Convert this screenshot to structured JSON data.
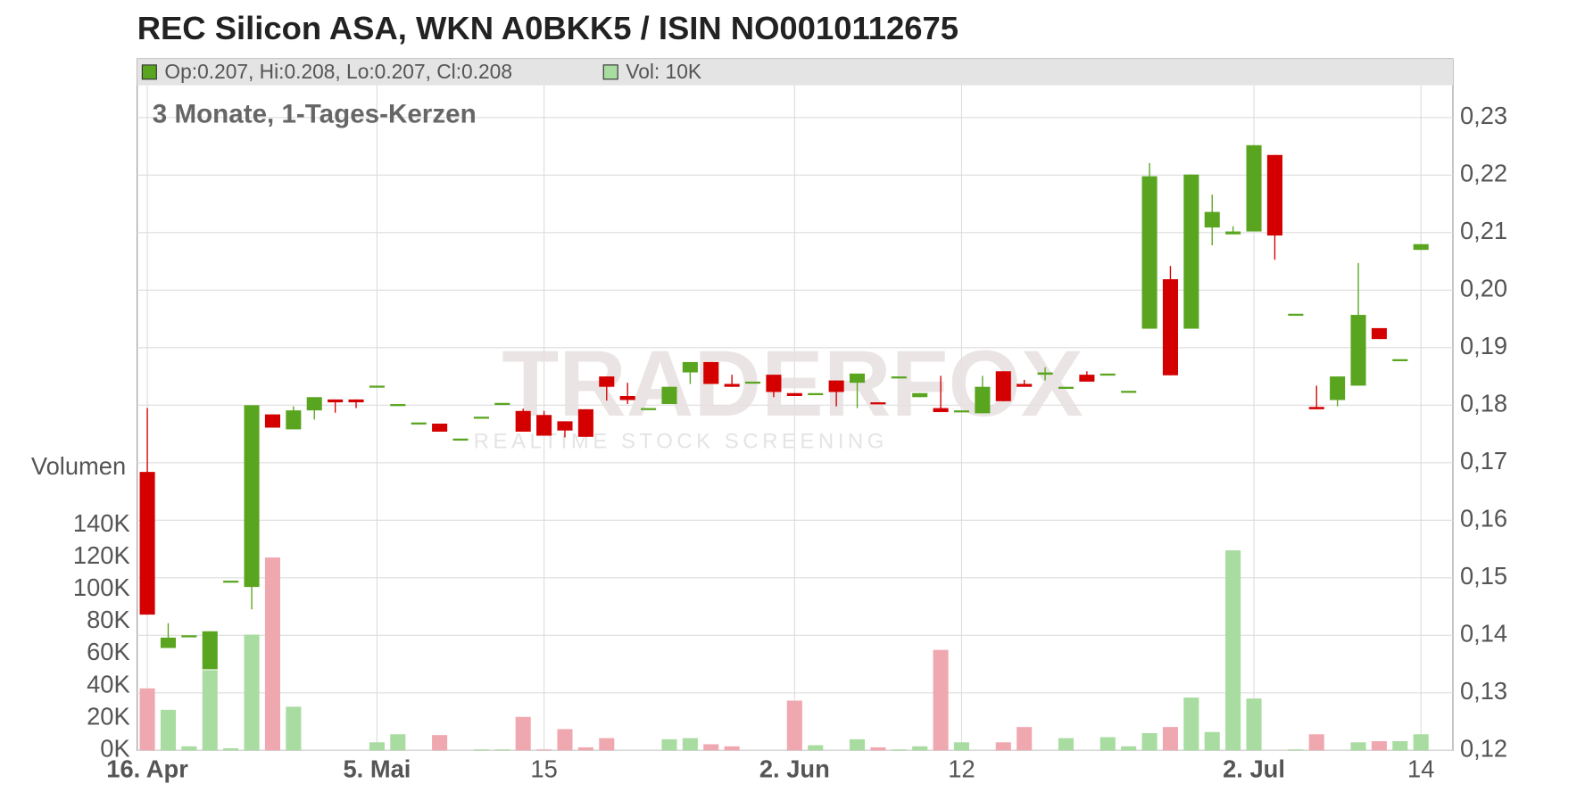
{
  "chart_data": {
    "type": "candlestick",
    "title": "REC Silicon ASA, WKN A0BKK5 / ISIN NO0010112675",
    "subtitle": "3 Monate, 1-Tages-Kerzen",
    "legend": [
      "Op:0.207, Hi:0.208, Lo:0.207, Cl:0.208",
      "Vol: 10K"
    ],
    "volume_label": "Volumen",
    "watermark": "TRADERFOX",
    "watermark_subtitle": "REALTIME STOCK SCREENING",
    "up_color": "#5aa520",
    "down_color": "#d40000",
    "volume_up_color": "#a8dca0",
    "volume_down_color": "#f0a8b0",
    "grid": true,
    "categories": [
      "16. Apr",
      null,
      null,
      null,
      null,
      null,
      null,
      null,
      null,
      null,
      null,
      "5. Mai",
      null,
      null,
      null,
      null,
      null,
      null,
      null,
      "15",
      null,
      null,
      null,
      null,
      null,
      null,
      null,
      null,
      null,
      null,
      null,
      "2. Jun",
      null,
      null,
      null,
      null,
      null,
      null,
      null,
      "12",
      null,
      null,
      null,
      null,
      null,
      null,
      null,
      null,
      null,
      null,
      null,
      null,
      null,
      "2. Jul",
      null,
      null,
      null,
      null,
      null,
      null,
      null,
      "14"
    ],
    "open": [
      0.1684,
      0.1378,
      0.14,
      0.1341,
      0.1495,
      0.1484,
      0.1784,
      0.1758,
      0.1791,
      0.181,
      0.181,
      0.1834,
      0.1802,
      0.177,
      0.1768,
      0.1742,
      0.178,
      0.1804,
      0.179,
      0.1783,
      0.1772,
      0.1793,
      0.185,
      0.1816,
      0.1795,
      0.1802,
      0.1857,
      0.1875,
      0.1837,
      0.1841,
      0.1853,
      0.1821,
      0.1821,
      0.1843,
      0.1839,
      0.1805,
      0.185,
      0.1814,
      0.1795,
      0.1791,
      0.1786,
      0.1859,
      0.1837,
      0.1853,
      0.1832,
      0.1853,
      0.1855,
      0.1825,
      0.1933,
      0.2019,
      0.1933,
      0.2109,
      0.2097,
      0.2102,
      0.2235,
      0.1959,
      0.1797,
      0.1809,
      0.1834,
      0.1934,
      0.188,
      0.207
    ],
    "high": [
      0.1795,
      0.1421,
      0.14,
      0.1407,
      0.1495,
      0.18,
      0.1784,
      0.1798,
      0.1814,
      0.181,
      0.181,
      0.1834,
      0.1802,
      0.177,
      0.1768,
      0.1742,
      0.178,
      0.1804,
      0.1794,
      0.179,
      0.1772,
      0.1793,
      0.185,
      0.1839,
      0.1795,
      0.1832,
      0.1875,
      0.1875,
      0.1853,
      0.1841,
      0.1853,
      0.1821,
      0.1821,
      0.1843,
      0.1855,
      0.1805,
      0.185,
      0.1821,
      0.1851,
      0.1791,
      0.1851,
      0.1859,
      0.1844,
      0.1866,
      0.1832,
      0.1859,
      0.1855,
      0.1825,
      0.2221,
      0.2042,
      0.2201,
      0.2166,
      0.2111,
      0.2252,
      0.2235,
      0.1959,
      0.1834,
      0.185,
      0.2047,
      0.1934,
      0.188,
      0.208
    ],
    "low": [
      0.1436,
      0.1378,
      0.14,
      0.1341,
      0.1495,
      0.1445,
      0.1761,
      0.1758,
      0.1775,
      0.1787,
      0.1795,
      0.1834,
      0.1802,
      0.177,
      0.1754,
      0.1742,
      0.178,
      0.1804,
      0.1754,
      0.1747,
      0.1744,
      0.1745,
      0.1808,
      0.1802,
      0.1795,
      0.1802,
      0.1837,
      0.1837,
      0.1832,
      0.1841,
      0.1814,
      0.1816,
      0.1821,
      0.1798,
      0.1795,
      0.1802,
      0.185,
      0.1814,
      0.1788,
      0.1791,
      0.1786,
      0.1807,
      0.1832,
      0.1843,
      0.1832,
      0.1841,
      0.1855,
      0.1825,
      0.1933,
      0.1852,
      0.1933,
      0.2078,
      0.2097,
      0.2102,
      0.2053,
      0.1959,
      0.1793,
      0.1798,
      0.1834,
      0.1915,
      0.188,
      0.207
    ],
    "close": [
      0.1436,
      0.1396,
      0.14,
      0.1407,
      0.1495,
      0.18,
      0.1761,
      0.1791,
      0.1814,
      0.1805,
      0.1805,
      0.1834,
      0.1802,
      0.177,
      0.1754,
      0.1742,
      0.178,
      0.1804,
      0.1754,
      0.1747,
      0.1756,
      0.1745,
      0.1832,
      0.1809,
      0.1795,
      0.1832,
      0.1875,
      0.1837,
      0.1832,
      0.1841,
      0.1823,
      0.1816,
      0.1821,
      0.1823,
      0.1855,
      0.1802,
      0.185,
      0.1821,
      0.1788,
      0.1791,
      0.1832,
      0.1807,
      0.1832,
      0.1857,
      0.1832,
      0.1841,
      0.1855,
      0.1825,
      0.2198,
      0.1852,
      0.2201,
      0.2136,
      0.2102,
      0.2252,
      0.2095,
      0.1959,
      0.1793,
      0.185,
      0.1957,
      0.1915,
      0.188,
      0.208
    ],
    "volume": [
      38500,
      25200,
      2500,
      49800,
      1300,
      71900,
      119800,
      27100,
      0,
      0,
      0,
      5000,
      10000,
      0,
      9500,
      0,
      600,
      600,
      20800,
      600,
      13200,
      1900,
      7600,
      0,
      0,
      6900,
      7600,
      3800,
      2500,
      0,
      0,
      30900,
      3200,
      0,
      6900,
      1900,
      600,
      2500,
      62400,
      5000,
      0,
      5000,
      14500,
      0,
      7600,
      0,
      8200,
      2500,
      10700,
      14500,
      32800,
      11400,
      124200,
      32200,
      0,
      600,
      10000,
      0,
      5000,
      5700,
      5700,
      10000
    ],
    "ylim": [
      0.12,
      0.2402
    ],
    "yticks": [
      {
        "value": 0.12,
        "label": "0,12"
      },
      {
        "value": 0.13,
        "label": "0,13"
      },
      {
        "value": 0.14,
        "label": "0,14"
      },
      {
        "value": 0.15,
        "label": "0,15"
      },
      {
        "value": 0.16,
        "label": "0,16"
      },
      {
        "value": 0.17,
        "label": "0,17"
      },
      {
        "value": 0.18,
        "label": "0,18"
      },
      {
        "value": 0.19,
        "label": "0,19"
      },
      {
        "value": 0.2,
        "label": "0,20"
      },
      {
        "value": 0.21,
        "label": "0,21"
      },
      {
        "value": 0.22,
        "label": "0,22"
      },
      {
        "value": 0.23,
        "label": "0,23"
      }
    ],
    "volume_lim": [
      0,
      429400
    ],
    "volume_ticks": [
      {
        "value": 0,
        "label": "0K"
      },
      {
        "value": 20000,
        "label": "20K"
      },
      {
        "value": 40000,
        "label": "40K"
      },
      {
        "value": 60000,
        "label": "60K"
      },
      {
        "value": 80000,
        "label": "80K"
      },
      {
        "value": 100000,
        "label": "100K"
      },
      {
        "value": 120000,
        "label": "120K"
      },
      {
        "value": 140000,
        "label": "140K"
      }
    ]
  }
}
